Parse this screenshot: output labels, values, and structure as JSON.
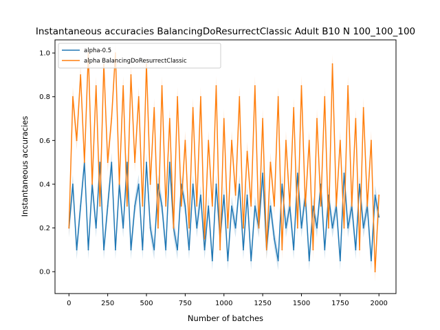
{
  "chart_data": {
    "type": "line",
    "title": "Instantaneous accuracies BalancingDoResurrectClassic Adult B10 N 100_100_100",
    "xlabel": "Number of batches",
    "ylabel": "Instantaneous accuracies",
    "xlim": [
      -90,
      2110
    ],
    "ylim": [
      -0.1,
      1.06
    ],
    "xticks": [
      0,
      250,
      500,
      750,
      1000,
      1250,
      1500,
      1750,
      2000
    ],
    "yticks": [
      0.0,
      0.2,
      0.4,
      0.6,
      0.8,
      1.0
    ],
    "grid": false,
    "legend_position": "top-left",
    "colors": {
      "series1": "#1f77b4",
      "series2": "#ff7f0e"
    },
    "series": [
      {
        "name": "alpha-0.5",
        "x": [
          0,
          25,
          50,
          75,
          100,
          125,
          150,
          175,
          200,
          225,
          250,
          275,
          300,
          325,
          350,
          375,
          400,
          425,
          450,
          475,
          500,
          525,
          550,
          575,
          600,
          625,
          650,
          675,
          700,
          725,
          750,
          775,
          800,
          825,
          850,
          875,
          900,
          925,
          950,
          975,
          1000,
          1025,
          1050,
          1075,
          1100,
          1125,
          1150,
          1175,
          1200,
          1225,
          1250,
          1275,
          1300,
          1325,
          1350,
          1375,
          1400,
          1425,
          1450,
          1475,
          1500,
          1525,
          1550,
          1575,
          1600,
          1625,
          1650,
          1675,
          1700,
          1725,
          1750,
          1775,
          1800,
          1825,
          1850,
          1875,
          1900,
          1925,
          1950,
          1975,
          2000
        ],
        "values": [
          0.2,
          0.4,
          0.1,
          0.3,
          0.5,
          0.1,
          0.4,
          0.2,
          0.5,
          0.1,
          0.3,
          0.5,
          0.1,
          0.4,
          0.2,
          0.5,
          0.1,
          0.3,
          0.4,
          0.1,
          0.5,
          0.2,
          0.1,
          0.4,
          0.3,
          0.1,
          0.5,
          0.2,
          0.1,
          0.4,
          0.3,
          0.1,
          0.4,
          0.2,
          0.35,
          0.1,
          0.3,
          0.05,
          0.4,
          0.15,
          0.35,
          0.05,
          0.3,
          0.2,
          0.4,
          0.1,
          0.35,
          0.05,
          0.3,
          0.2,
          0.45,
          0.1,
          0.3,
          0.15,
          0.05,
          0.4,
          0.2,
          0.3,
          0.1,
          0.45,
          0.2,
          0.35,
          0.05,
          0.3,
          0.2,
          0.4,
          0.1,
          0.35,
          0.2,
          0.3,
          0.05,
          0.45,
          0.2,
          0.3,
          0.1,
          0.4,
          0.2,
          0.3,
          0.05,
          0.35,
          0.25
        ]
      },
      {
        "name": "alpha BalancingDoResurrectClassic",
        "x": [
          0,
          25,
          50,
          75,
          100,
          125,
          150,
          175,
          200,
          225,
          250,
          275,
          300,
          325,
          350,
          375,
          400,
          425,
          450,
          475,
          500,
          525,
          550,
          575,
          600,
          625,
          650,
          675,
          700,
          725,
          750,
          775,
          800,
          825,
          850,
          875,
          900,
          925,
          950,
          975,
          1000,
          1025,
          1050,
          1075,
          1100,
          1125,
          1150,
          1175,
          1200,
          1225,
          1250,
          1275,
          1300,
          1325,
          1350,
          1375,
          1400,
          1425,
          1450,
          1475,
          1500,
          1525,
          1550,
          1575,
          1600,
          1625,
          1650,
          1675,
          1700,
          1725,
          1750,
          1775,
          1800,
          1825,
          1850,
          1875,
          1900,
          1925,
          1950,
          1975,
          2000
        ],
        "values": [
          0.2,
          0.8,
          0.6,
          0.9,
          0.5,
          1.0,
          0.4,
          0.85,
          0.3,
          0.95,
          0.5,
          0.7,
          1.0,
          0.4,
          0.85,
          0.3,
          0.9,
          0.5,
          0.8,
          0.3,
          0.95,
          0.4,
          0.75,
          0.2,
          0.85,
          0.3,
          0.7,
          0.2,
          0.8,
          0.3,
          0.6,
          0.2,
          0.75,
          0.3,
          0.8,
          0.15,
          0.6,
          0.3,
          0.85,
          0.1,
          0.7,
          0.2,
          0.6,
          0.35,
          0.8,
          0.2,
          0.55,
          0.3,
          0.85,
          0.2,
          0.7,
          0.1,
          0.5,
          0.3,
          0.8,
          0.1,
          0.6,
          0.3,
          0.75,
          0.2,
          0.85,
          0.3,
          0.6,
          0.1,
          0.7,
          0.3,
          0.8,
          0.2,
          0.95,
          0.3,
          0.6,
          0.2,
          0.85,
          0.3,
          0.7,
          0.1,
          0.75,
          0.3,
          0.6,
          0.0,
          0.35
        ]
      }
    ]
  }
}
